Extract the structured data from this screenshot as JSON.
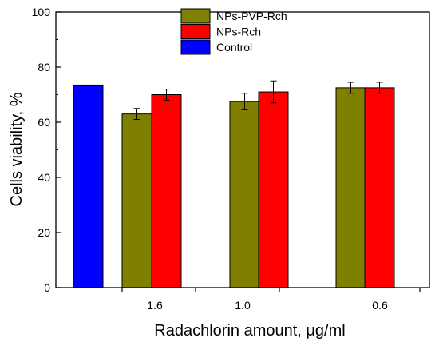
{
  "chart_data": {
    "type": "bar",
    "xlabel": "Radachlorin amount, μg/ml",
    "ylabel": "Cells viability, %",
    "ylim": [
      0,
      100
    ],
    "yticks": [
      "0",
      "20",
      "40",
      "60",
      "80",
      "100"
    ],
    "categories": [
      "",
      "1.6",
      "1.0",
      "0.6"
    ],
    "series": [
      {
        "name": "NPs-PVP-Rch",
        "color": "#808000",
        "values": [
          null,
          63,
          67.5,
          72.5
        ],
        "errors": [
          null,
          2,
          3,
          2
        ]
      },
      {
        "name": "NPs-Rch",
        "color": "#ff0000",
        "values": [
          null,
          70,
          71,
          72.5
        ],
        "errors": [
          null,
          2,
          4,
          2
        ]
      },
      {
        "name": "Control",
        "color": "#0000ff",
        "values": [
          73.5,
          null,
          null,
          null
        ],
        "errors": [
          null,
          null,
          null,
          null
        ]
      }
    ],
    "legend_position": "top-center",
    "grid": false
  }
}
